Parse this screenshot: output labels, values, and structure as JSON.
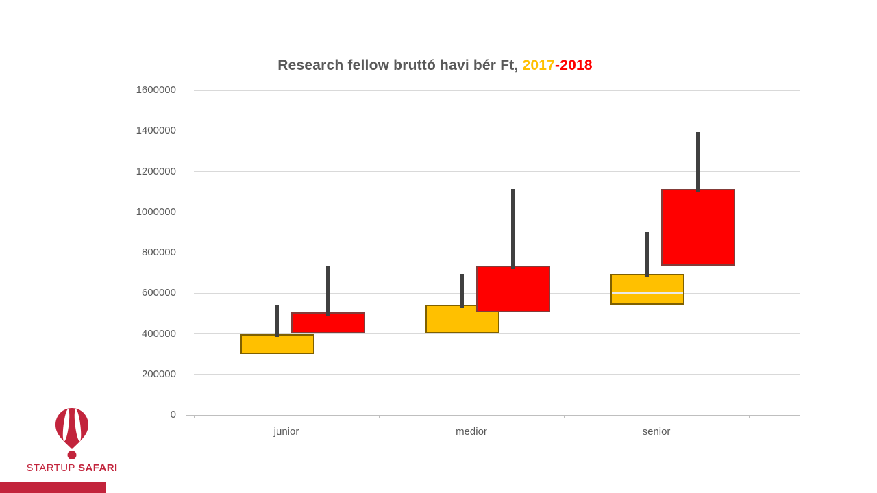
{
  "slide": {
    "title": {
      "main": "Research fellow bruttó havi bér Ft, ",
      "year_2017": "2017",
      "dash_2018": "-2018",
      "color_main": "#595959",
      "color_2017": "#FFC000",
      "color_2018": "#FF0000"
    },
    "logo": {
      "brand_first": "STARTUP ",
      "brand_second": "SAFARI",
      "brand_color": "#C2243C"
    }
  },
  "chart_data": {
    "type": "box",
    "title": "Research fellow bruttó havi bér Ft, 2017-2018",
    "categories": [
      "junior",
      "medior",
      "senior"
    ],
    "y_axis": {
      "min": 0,
      "max": 1600000,
      "step": 200000,
      "tick_labels": [
        "0",
        "200000",
        "400000",
        "600000",
        "800000",
        "1000000",
        "1200000",
        "1400000",
        "1600000"
      ]
    },
    "series": [
      {
        "name": "2017",
        "fill": "#FFC000",
        "border": "#7F6000",
        "boxes": [
          {
            "category": "junior",
            "low": 300000,
            "high": 400000,
            "whisker_max": 545000,
            "median": null
          },
          {
            "category": "medior",
            "low": 400000,
            "high": 545000,
            "whisker_max": 695000,
            "median": null
          },
          {
            "category": "senior",
            "low": 545000,
            "high": 695000,
            "whisker_max": 900000,
            "median": 600000
          }
        ]
      },
      {
        "name": "2018",
        "fill": "#FF0000",
        "border": "#843C39",
        "boxes": [
          {
            "category": "junior",
            "low": 400000,
            "high": 505000,
            "whisker_max": 735000,
            "median": null
          },
          {
            "category": "medior",
            "low": 505000,
            "high": 735000,
            "whisker_max": 1115000,
            "median": null
          },
          {
            "category": "senior",
            "low": 735000,
            "high": 1115000,
            "whisker_max": 1395000,
            "median": null
          }
        ]
      }
    ],
    "legend": "none",
    "grid": true,
    "grid_color": "#D9D9D9",
    "axis_color": "#BFBFBF",
    "whisker_color": "#404040",
    "median_line_color": "#E9E9E9"
  }
}
